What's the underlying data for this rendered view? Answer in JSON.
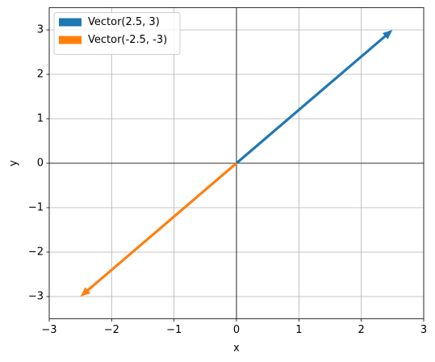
{
  "chart_data": {
    "type": "quiver",
    "xlabel": "x",
    "ylabel": "y",
    "series": [
      {
        "name": "Vector(2.5, 3)",
        "color": "#1f77b4",
        "origin": [
          0,
          0
        ],
        "vector": [
          2.5,
          3
        ]
      },
      {
        "name": "Vector(-2.5, -3)",
        "color": "#ff7f0e",
        "origin": [
          0,
          0
        ],
        "vector": [
          -2.5,
          -3
        ]
      }
    ],
    "xlim": [
      -3,
      3
    ],
    "ylim": [
      -3.5,
      3.5
    ],
    "xticks": [
      {
        "value": -3,
        "label": "−3"
      },
      {
        "value": -2,
        "label": "−2"
      },
      {
        "value": -1,
        "label": "−1"
      },
      0,
      1,
      2,
      3
    ],
    "yticks": [
      {
        "value": -3,
        "label": "−3"
      },
      {
        "value": -2,
        "label": "−2"
      },
      {
        "value": -1,
        "label": "−1"
      },
      0,
      1,
      2,
      3
    ],
    "grid": true,
    "legend": "upper-left"
  }
}
